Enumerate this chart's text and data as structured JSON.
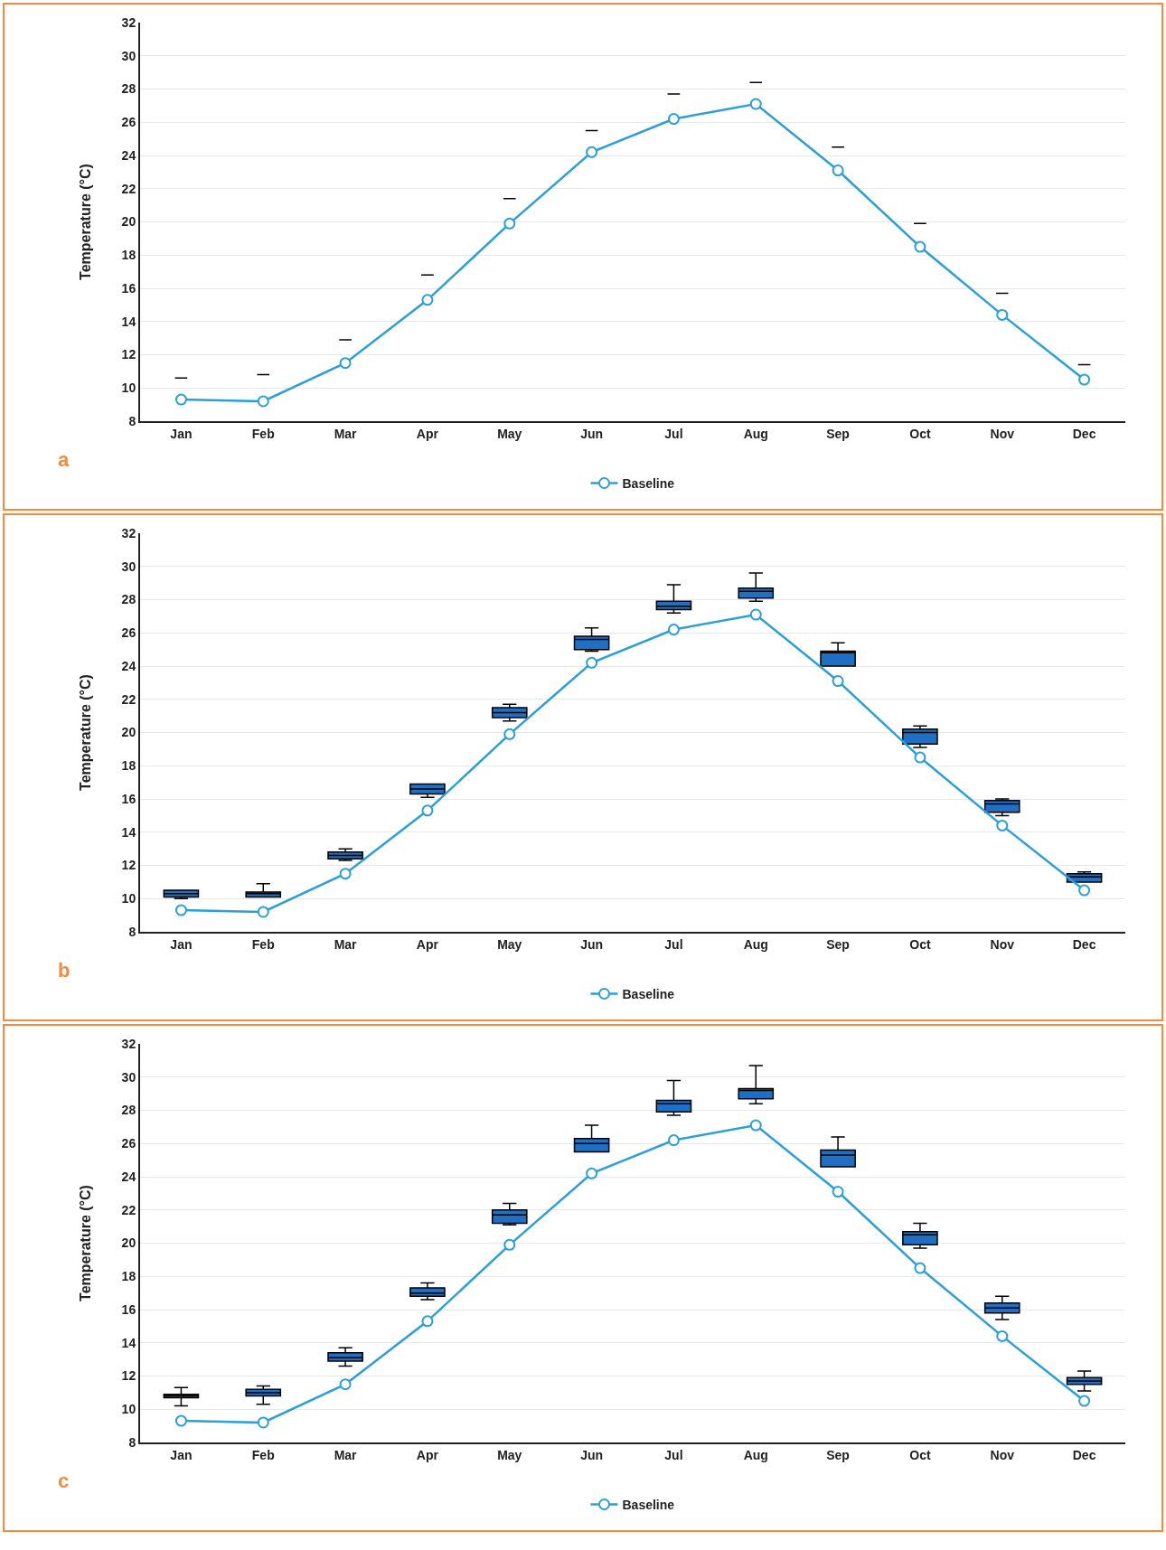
{
  "chart_data": [
    {
      "type": "box",
      "ylabel": "Temperature (°C)",
      "categories": [
        "Jan",
        "Feb",
        "Mar",
        "Apr",
        "May",
        "Jun",
        "Jul",
        "Aug",
        "Sep",
        "Oct",
        "Nov",
        "Dec"
      ],
      "ylim": [
        8,
        32
      ],
      "yticks": [
        8,
        10,
        12,
        14,
        16,
        18,
        20,
        22,
        24,
        26,
        28,
        30,
        32
      ],
      "grid": "y",
      "legend": "bottom",
      "marker": "circle",
      "annotations": [
        "a"
      ],
      "series": [
        {
          "color": "#000000",
          "boxes": [
            {
              "low": 10.6,
              "q1": 10.6,
              "median": 10.6,
              "q3": 10.6,
              "high": 10.6
            },
            {
              "low": 10.8,
              "q1": 10.8,
              "median": 10.8,
              "q3": 10.8,
              "high": 10.8
            },
            {
              "low": 12.9,
              "q1": 12.9,
              "median": 12.9,
              "q3": 12.9,
              "high": 12.9
            },
            {
              "low": 16.8,
              "q1": 16.8,
              "median": 16.8,
              "q3": 16.8,
              "high": 16.8
            },
            {
              "low": 21.4,
              "q1": 21.4,
              "median": 21.4,
              "q3": 21.4,
              "high": 21.4
            },
            {
              "low": 25.5,
              "q1": 25.5,
              "median": 25.5,
              "q3": 25.5,
              "high": 25.5
            },
            {
              "low": 27.7,
              "q1": 27.7,
              "median": 27.7,
              "q3": 27.7,
              "high": 27.7
            },
            {
              "low": 28.4,
              "q1": 28.4,
              "median": 28.4,
              "q3": 28.4,
              "high": 28.4
            },
            {
              "low": 24.5,
              "q1": 24.5,
              "median": 24.5,
              "q3": 24.5,
              "high": 24.5
            },
            {
              "low": 19.9,
              "q1": 19.9,
              "median": 19.9,
              "q3": 19.9,
              "high": 19.9
            },
            {
              "low": 15.7,
              "q1": 15.7,
              "median": 15.7,
              "q3": 15.7,
              "high": 15.7
            },
            {
              "low": 11.4,
              "q1": 11.4,
              "median": 11.4,
              "q3": 11.4,
              "high": 11.4
            }
          ]
        },
        {
          "type": "line",
          "name": "Baseline",
          "color": "#2a9fd8",
          "values": [
            9.3,
            9.2,
            11.5,
            15.3,
            19.9,
            24.2,
            26.2,
            27.1,
            23.1,
            18.5,
            14.4,
            10.5
          ]
        }
      ]
    },
    {
      "type": "box",
      "ylabel": "Temperature (°C)",
      "categories": [
        "Jan",
        "Feb",
        "Mar",
        "Apr",
        "May",
        "Jun",
        "Jul",
        "Aug",
        "Sep",
        "Oct",
        "Nov",
        "Dec"
      ],
      "ylim": [
        8,
        32
      ],
      "yticks": [
        8,
        10,
        12,
        14,
        16,
        18,
        20,
        22,
        24,
        26,
        28,
        30,
        32
      ],
      "grid": "y",
      "legend": "bottom",
      "marker": "circle",
      "annotations": [
        "b"
      ],
      "series": [
        {
          "color": "#1f6fc5",
          "boxes": [
            {
              "low": 10.0,
              "q1": 10.1,
              "median": 10.3,
              "q3": 10.5,
              "high": 10.5
            },
            {
              "low": 10.1,
              "q1": 10.1,
              "median": 10.3,
              "q3": 10.4,
              "high": 10.9
            },
            {
              "low": 12.3,
              "q1": 12.4,
              "median": 12.6,
              "q3": 12.8,
              "high": 13.0
            },
            {
              "low": 16.1,
              "q1": 16.3,
              "median": 16.6,
              "q3": 16.9,
              "high": 16.9
            },
            {
              "low": 20.7,
              "q1": 20.9,
              "median": 21.2,
              "q3": 21.5,
              "high": 21.7
            },
            {
              "low": 24.9,
              "q1": 25.0,
              "median": 25.6,
              "q3": 25.8,
              "high": 26.3
            },
            {
              "low": 27.2,
              "q1": 27.4,
              "median": 27.6,
              "q3": 27.9,
              "high": 28.9
            },
            {
              "low": 27.9,
              "q1": 28.1,
              "median": 28.5,
              "q3": 28.7,
              "high": 29.6
            },
            {
              "low": 24.0,
              "q1": 24.0,
              "median": 24.8,
              "q3": 24.9,
              "high": 25.4
            },
            {
              "low": 19.1,
              "q1": 19.3,
              "median": 20.0,
              "q3": 20.2,
              "high": 20.4
            },
            {
              "low": 15.0,
              "q1": 15.2,
              "median": 15.7,
              "q3": 15.9,
              "high": 16.0
            },
            {
              "low": 11.0,
              "q1": 11.0,
              "median": 11.3,
              "q3": 11.5,
              "high": 11.6
            }
          ]
        },
        {
          "type": "line",
          "name": "Baseline",
          "color": "#2a9fd8",
          "values": [
            9.3,
            9.2,
            11.5,
            15.3,
            19.9,
            24.2,
            26.2,
            27.1,
            23.1,
            18.5,
            14.4,
            10.5
          ]
        }
      ]
    },
    {
      "type": "box",
      "ylabel": "Temperature (°C)",
      "categories": [
        "Jan",
        "Feb",
        "Mar",
        "Apr",
        "May",
        "Jun",
        "Jul",
        "Aug",
        "Sep",
        "Oct",
        "Nov",
        "Dec"
      ],
      "ylim": [
        8,
        32
      ],
      "yticks": [
        8,
        10,
        12,
        14,
        16,
        18,
        20,
        22,
        24,
        26,
        28,
        30,
        32
      ],
      "grid": "y",
      "legend": "bottom",
      "marker": "circle",
      "annotations": [
        "c"
      ],
      "series": [
        {
          "color": "#1f6fc5",
          "boxes": [
            {
              "low": 10.2,
              "q1": 10.7,
              "median": 10.8,
              "q3": 10.9,
              "high": 11.3
            },
            {
              "low": 10.3,
              "q1": 10.8,
              "median": 11.0,
              "q3": 11.2,
              "high": 11.4
            },
            {
              "low": 12.6,
              "q1": 12.9,
              "median": 13.1,
              "q3": 13.4,
              "high": 13.7
            },
            {
              "low": 16.6,
              "q1": 16.8,
              "median": 17.0,
              "q3": 17.3,
              "high": 17.6
            },
            {
              "low": 21.1,
              "q1": 21.2,
              "median": 21.7,
              "q3": 22.0,
              "high": 22.4
            },
            {
              "low": 25.5,
              "q1": 25.5,
              "median": 26.0,
              "q3": 26.3,
              "high": 27.1
            },
            {
              "low": 27.7,
              "q1": 27.9,
              "median": 28.4,
              "q3": 28.6,
              "high": 29.8
            },
            {
              "low": 28.4,
              "q1": 28.7,
              "median": 29.2,
              "q3": 29.3,
              "high": 30.7
            },
            {
              "low": 24.6,
              "q1": 24.6,
              "median": 25.3,
              "q3": 25.6,
              "high": 26.4
            },
            {
              "low": 19.7,
              "q1": 19.9,
              "median": 20.5,
              "q3": 20.7,
              "high": 21.2
            },
            {
              "low": 15.4,
              "q1": 15.8,
              "median": 16.1,
              "q3": 16.4,
              "high": 16.8
            },
            {
              "low": 11.1,
              "q1": 11.5,
              "median": 11.7,
              "q3": 11.9,
              "high": 12.3
            }
          ]
        },
        {
          "type": "line",
          "name": "Baseline",
          "color": "#2a9fd8",
          "values": [
            9.3,
            9.2,
            11.5,
            15.3,
            19.9,
            24.2,
            26.2,
            27.1,
            23.1,
            18.5,
            14.4,
            10.5
          ]
        }
      ]
    }
  ]
}
